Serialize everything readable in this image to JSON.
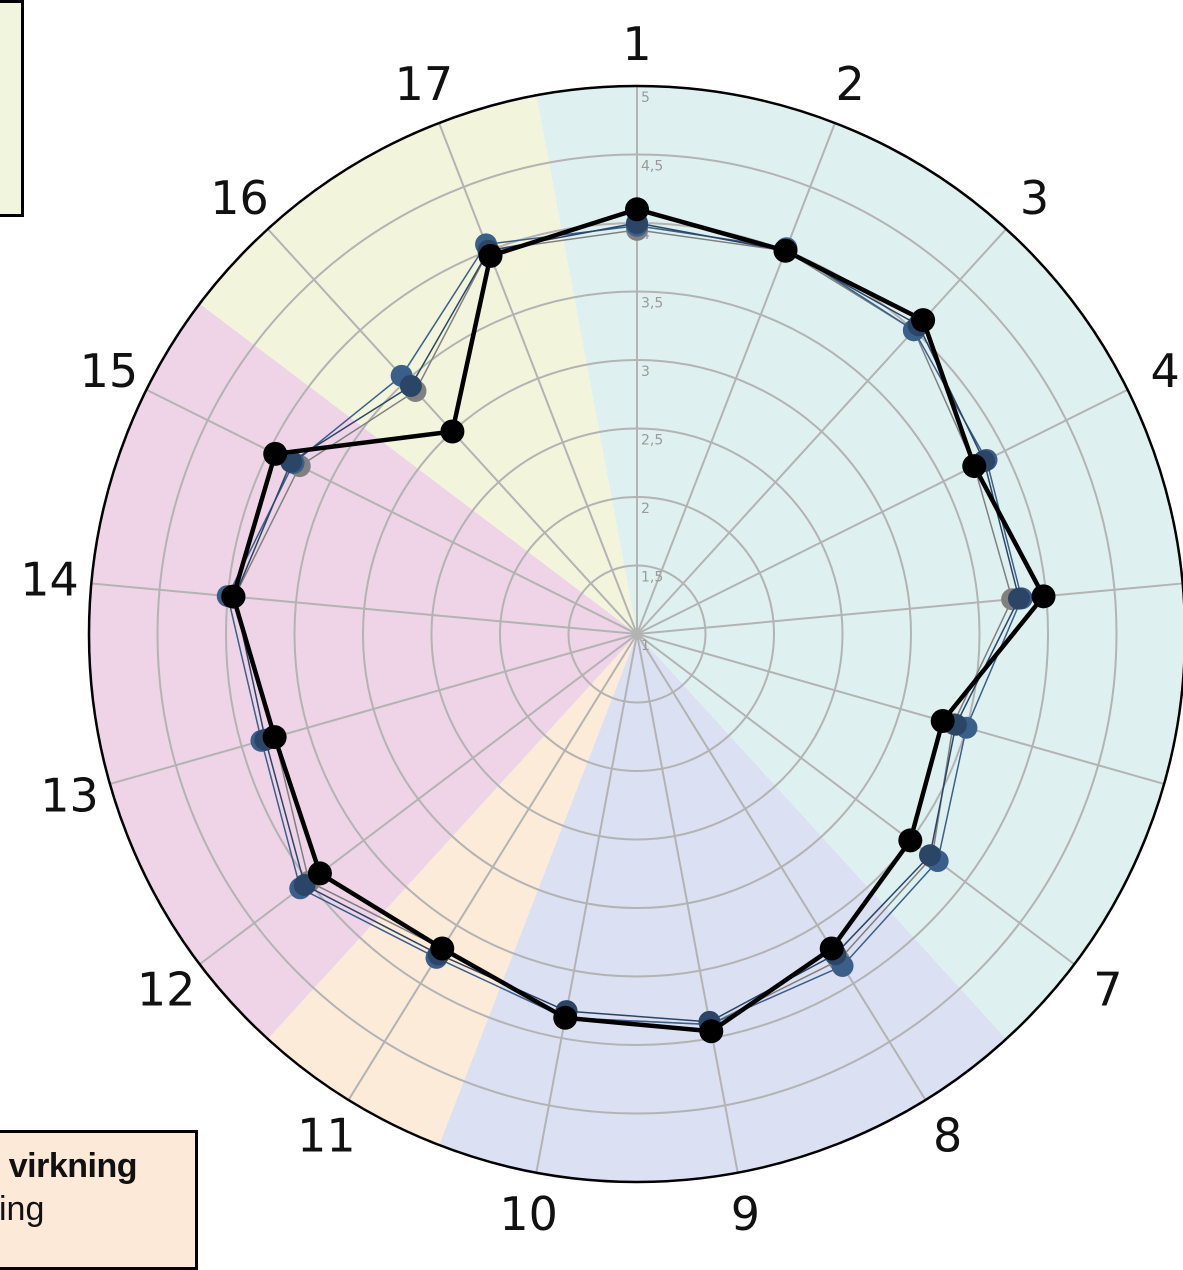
{
  "chart_data": {
    "type": "radar",
    "axes": [
      "1",
      "2",
      "3",
      "4",
      "5",
      "6",
      "7",
      "8",
      "9",
      "10",
      "11",
      "12",
      "13",
      "14",
      "15",
      "16",
      "17"
    ],
    "visible_axis_labels": [
      "1",
      "2",
      "3",
      "4",
      "",
      "",
      "7",
      "8",
      "9",
      "10",
      "11",
      "12",
      "13",
      "14",
      "15",
      "16",
      "17"
    ],
    "rlim": [
      1,
      5
    ],
    "r_ticks": [
      1,
      1.5,
      2,
      2.5,
      3,
      3.5,
      4,
      4.5,
      5
    ],
    "r_tick_labels": [
      "1",
      "1,5",
      "2",
      "2,5",
      "3",
      "3,5",
      "4",
      "4,5",
      "5"
    ],
    "grid": true,
    "sectors": [
      {
        "from_axis": 1,
        "to_axis": 7,
        "color": "#dff0f0"
      },
      {
        "from_axis": 8,
        "to_axis": 10,
        "color": "#dbe0f2"
      },
      {
        "from_axis": 11,
        "to_axis": 11,
        "color": "#fcebd9"
      },
      {
        "from_axis": 12,
        "to_axis": 15,
        "color": "#eed4e6"
      },
      {
        "from_axis": 16,
        "to_axis": 17,
        "color": "#f2f5dc"
      }
    ],
    "series": [
      {
        "color": "#808080",
        "line_width": 1.5,
        "marker_size": 11,
        "values": [
          3.95,
          4.0,
          4.0,
          3.75,
          3.75,
          3.4,
          3.7,
          3.8,
          3.9,
          3.85,
          3.7,
          4.0,
          3.75,
          3.95,
          3.75,
          3.4,
          4.0
        ]
      },
      {
        "color": "#3a5f8a",
        "line_width": 1.5,
        "marker_size": 11,
        "values": [
          3.98,
          4.02,
          4.0,
          3.85,
          3.82,
          3.5,
          3.75,
          3.85,
          3.9,
          3.85,
          3.78,
          4.08,
          3.85,
          4.0,
          3.8,
          3.55,
          4.05
        ]
      },
      {
        "color": "#2b4566",
        "line_width": 1.5,
        "marker_size": 11,
        "values": [
          4.0,
          4.0,
          4.05,
          3.83,
          3.8,
          3.42,
          3.68,
          3.75,
          3.88,
          3.8,
          3.75,
          4.04,
          3.82,
          3.95,
          3.82,
          3.45,
          4.0
        ]
      },
      {
        "color": "#000000",
        "line_width": 4.5,
        "marker_size": 12,
        "values": [
          4.1,
          4.0,
          4.1,
          3.75,
          3.98,
          3.32,
          3.5,
          3.7,
          3.95,
          3.85,
          3.7,
          3.9,
          3.75,
          3.96,
          3.95,
          3.0,
          3.96
        ]
      }
    ]
  },
  "legend_bottom": {
    "line1": "virkning",
    "line2": "ing"
  }
}
